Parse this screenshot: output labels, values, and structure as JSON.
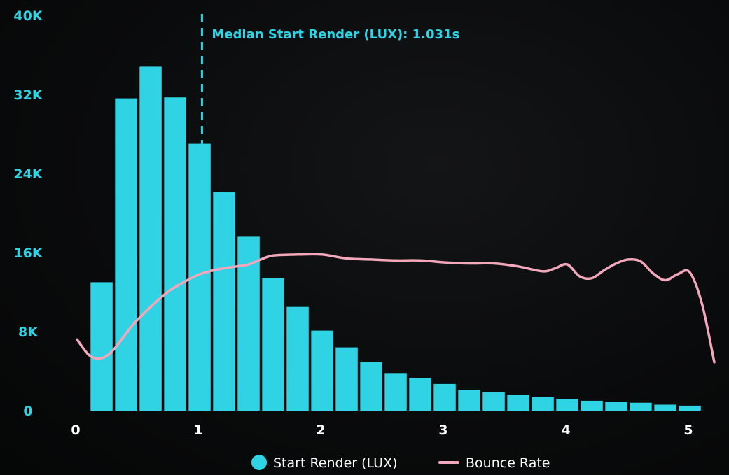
{
  "chart_data": {
    "type": "bar",
    "title": "",
    "xlabel": "",
    "ylabel": "",
    "ylim": [
      0,
      40000
    ],
    "xlim": [
      0,
      5.2
    ],
    "grid": false,
    "legend_position": "bottom-center",
    "x_ticks": [
      {
        "value": 0,
        "label": "0"
      },
      {
        "value": 1,
        "label": "1"
      },
      {
        "value": 2,
        "label": "2"
      },
      {
        "value": 3,
        "label": "3"
      },
      {
        "value": 4,
        "label": "4"
      },
      {
        "value": 5,
        "label": "5"
      }
    ],
    "y_ticks": [
      {
        "value": 0,
        "label": "0"
      },
      {
        "value": 8000,
        "label": "8K"
      },
      {
        "value": 16000,
        "label": "16K"
      },
      {
        "value": 24000,
        "label": "24K"
      },
      {
        "value": 32000,
        "label": "32K"
      },
      {
        "value": 40000,
        "label": "40K"
      }
    ],
    "bar_width": 0.18,
    "series": [
      {
        "name": "Start Render (LUX)",
        "type": "bar",
        "color": "#2fd3e3",
        "x": [
          0.2,
          0.4,
          0.6,
          0.8,
          1.0,
          1.2,
          1.4,
          1.6,
          1.8,
          2.0,
          2.2,
          2.4,
          2.6,
          2.8,
          3.0,
          3.2,
          3.4,
          3.6,
          3.8,
          4.0,
          4.2,
          4.4,
          4.6,
          4.8,
          5.0
        ],
        "values": [
          13000,
          31600,
          34800,
          31700,
          27000,
          22100,
          17600,
          13400,
          10500,
          8100,
          6400,
          4900,
          3800,
          3300,
          2700,
          2100,
          1900,
          1600,
          1400,
          1200,
          1000,
          900,
          800,
          600,
          500
        ]
      },
      {
        "name": "Bounce Rate",
        "type": "line",
        "color": "#f2a7ba",
        "x": [
          0.0,
          0.1,
          0.2,
          0.3,
          0.45,
          0.6,
          0.75,
          0.9,
          1.0,
          1.15,
          1.3,
          1.4,
          1.5,
          1.6,
          1.8,
          2.0,
          2.2,
          2.4,
          2.6,
          2.8,
          3.0,
          3.2,
          3.4,
          3.6,
          3.8,
          3.9,
          4.0,
          4.1,
          4.2,
          4.3,
          4.4,
          4.5,
          4.6,
          4.7,
          4.8,
          4.9,
          5.0,
          5.1,
          5.2
        ],
        "values": [
          7200,
          5600,
          5300,
          6200,
          8600,
          10500,
          12100,
          13200,
          13800,
          14300,
          14600,
          14800,
          15300,
          15700,
          15800,
          15800,
          15400,
          15300,
          15200,
          15200,
          15000,
          14900,
          14900,
          14600,
          14100,
          14400,
          14800,
          13600,
          13400,
          14200,
          14900,
          15300,
          15100,
          13900,
          13200,
          13800,
          14000,
          10800,
          4900
        ]
      }
    ],
    "annotations": [
      {
        "type": "vline",
        "x": 1.031,
        "label": "Median Start Render (LUX): 1.031s",
        "color": "#2fd3e3"
      }
    ]
  }
}
